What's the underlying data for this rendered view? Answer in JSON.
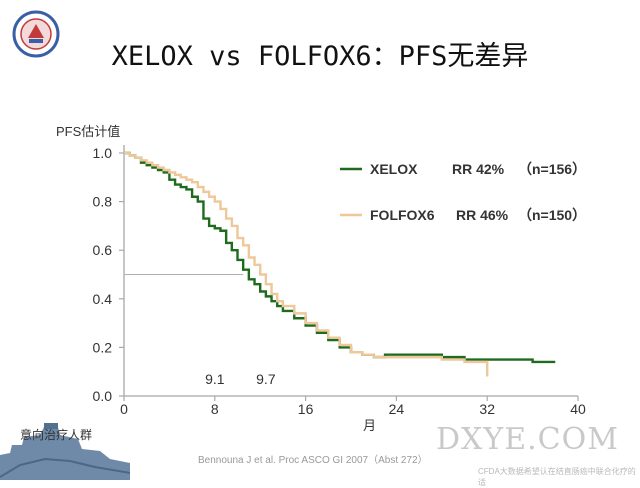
{
  "slide": {
    "title": "XELOX vs FOLFOX6：PFS无差异",
    "bottom_left_label": "意向治疗人群",
    "citation": "Bennouna J et al. Proc ASCO GI 2007（Abst 272）",
    "watermark": "DXYE.COM",
    "watermark_small": "CFDA大数据希望认在结直肠癌中联合化疗的适"
  },
  "chart_data": {
    "type": "line",
    "ylabel": "PFS估计值",
    "xlabel": "月",
    "xlim": [
      0,
      40
    ],
    "ylim": [
      0,
      1.0
    ],
    "x_ticks": [
      0,
      8,
      16,
      24,
      32,
      40
    ],
    "y_ticks": [
      0.0,
      0.2,
      0.4,
      0.6,
      0.8,
      1.0
    ],
    "y_tick_labels": [
      "0.0",
      "0.2",
      "0.4",
      "0.6",
      "0.8",
      "1.0"
    ],
    "median_line_y": 0.5,
    "median_labels": [
      {
        "text": "9.1",
        "x": 8.0
      },
      {
        "text": "9.7",
        "x": 12.5
      }
    ],
    "legend_position": "top-right",
    "colors": {
      "XELOX": "#1e6b1e",
      "FOLFOX6": "#eec89a",
      "axis": "#a8a8a8",
      "text": "#333333"
    },
    "series": [
      {
        "name": "XELOX",
        "rr": "RR 42%",
        "n": "（n=156）",
        "color": "#1e6b1e",
        "points": [
          [
            0,
            1.0
          ],
          [
            0.5,
            0.99
          ],
          [
            1.0,
            0.98
          ],
          [
            1.5,
            0.96
          ],
          [
            2.0,
            0.95
          ],
          [
            2.5,
            0.94
          ],
          [
            3.0,
            0.93
          ],
          [
            3.5,
            0.92
          ],
          [
            4.0,
            0.89
          ],
          [
            4.5,
            0.87
          ],
          [
            5.0,
            0.86
          ],
          [
            5.5,
            0.85
          ],
          [
            6.0,
            0.82
          ],
          [
            6.5,
            0.8
          ],
          [
            7.0,
            0.73
          ],
          [
            7.5,
            0.7
          ],
          [
            8.0,
            0.69
          ],
          [
            8.5,
            0.68
          ],
          [
            9.0,
            0.63
          ],
          [
            9.5,
            0.6
          ],
          [
            10.0,
            0.56
          ],
          [
            10.5,
            0.52
          ],
          [
            11.0,
            0.48
          ],
          [
            11.5,
            0.46
          ],
          [
            12.0,
            0.43
          ],
          [
            12.5,
            0.41
          ],
          [
            13.0,
            0.39
          ],
          [
            13.5,
            0.37
          ],
          [
            14.0,
            0.35
          ],
          [
            15.0,
            0.32
          ],
          [
            16.0,
            0.29
          ],
          [
            17.0,
            0.26
          ],
          [
            18.0,
            0.23
          ],
          [
            19.0,
            0.2
          ],
          [
            20.0,
            0.18
          ],
          [
            21.0,
            0.17
          ],
          [
            22.0,
            0.16
          ],
          [
            23.0,
            0.17
          ],
          [
            24.0,
            0.17
          ],
          [
            26.0,
            0.17
          ],
          [
            28.0,
            0.16
          ],
          [
            30.0,
            0.15
          ],
          [
            32.0,
            0.15
          ],
          [
            34.0,
            0.15
          ],
          [
            36.0,
            0.14
          ],
          [
            38.0,
            0.14
          ]
        ]
      },
      {
        "name": "FOLFOX6",
        "rr": "RR 46%",
        "n": "（n=150）",
        "color": "#eec89a",
        "points": [
          [
            0,
            1.0
          ],
          [
            0.5,
            0.99
          ],
          [
            1.0,
            0.98
          ],
          [
            1.5,
            0.97
          ],
          [
            2.0,
            0.96
          ],
          [
            2.5,
            0.95
          ],
          [
            3.0,
            0.94
          ],
          [
            3.5,
            0.93
          ],
          [
            4.0,
            0.92
          ],
          [
            4.5,
            0.91
          ],
          [
            5.0,
            0.9
          ],
          [
            5.5,
            0.89
          ],
          [
            6.0,
            0.88
          ],
          [
            6.5,
            0.86
          ],
          [
            7.0,
            0.84
          ],
          [
            7.5,
            0.82
          ],
          [
            8.0,
            0.8
          ],
          [
            8.5,
            0.77
          ],
          [
            9.0,
            0.73
          ],
          [
            9.5,
            0.7
          ],
          [
            10.0,
            0.65
          ],
          [
            10.5,
            0.62
          ],
          [
            11.0,
            0.57
          ],
          [
            11.5,
            0.54
          ],
          [
            12.0,
            0.5
          ],
          [
            12.5,
            0.46
          ],
          [
            13.0,
            0.42
          ],
          [
            13.5,
            0.39
          ],
          [
            14.0,
            0.37
          ],
          [
            15.0,
            0.34
          ],
          [
            16.0,
            0.3
          ],
          [
            17.0,
            0.27
          ],
          [
            18.0,
            0.24
          ],
          [
            19.0,
            0.21
          ],
          [
            20.0,
            0.18
          ],
          [
            21.0,
            0.17
          ],
          [
            22.0,
            0.16
          ],
          [
            24.0,
            0.16
          ],
          [
            26.0,
            0.16
          ],
          [
            28.0,
            0.15
          ],
          [
            30.0,
            0.14
          ],
          [
            32.0,
            0.13
          ],
          [
            32.0,
            0.08
          ]
        ]
      }
    ]
  }
}
